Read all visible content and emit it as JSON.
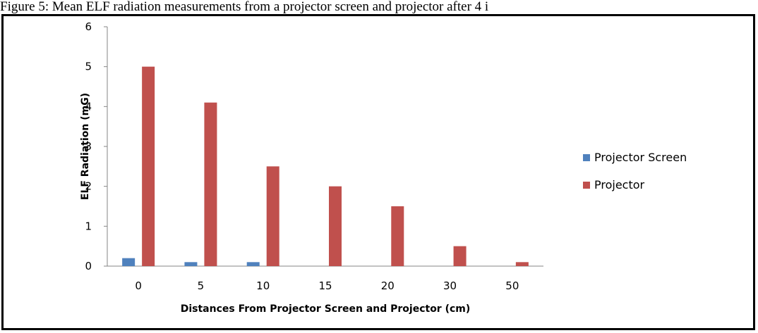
{
  "caption": "Figure 5: Mean ELF radiation measurements from a projector screen and projector after 4 i",
  "chart_data": {
    "type": "bar",
    "title": "",
    "categories": [
      "0",
      "5",
      "10",
      "15",
      "20",
      "30",
      "50"
    ],
    "series": [
      {
        "name": "Projector Screen",
        "color": "#4f81bd",
        "values": [
          0.2,
          0.1,
          0.1,
          0,
          0,
          0,
          0
        ]
      },
      {
        "name": "Projector",
        "color": "#c0504d",
        "values": [
          5,
          4.1,
          2.5,
          2,
          1.5,
          0.5,
          0.1
        ]
      }
    ],
    "xlabel": "Distances From Projector Screen and Projector (cm)",
    "ylabel": "ELF Radiation (mG)",
    "ylim": [
      0,
      6
    ],
    "yticks": [
      "0",
      "1",
      "2",
      "3",
      "4",
      "5",
      "6"
    ],
    "grid": false,
    "legend_position": "right"
  }
}
